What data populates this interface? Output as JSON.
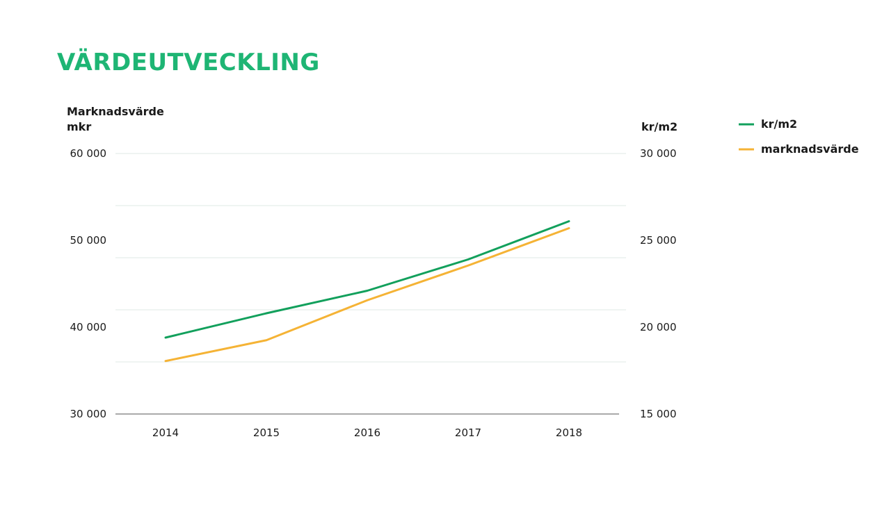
{
  "page_title": "VÄRDEUTVECKLING",
  "chart_data": {
    "type": "line",
    "categories": [
      "2014",
      "2015",
      "2016",
      "2017",
      "2018"
    ],
    "left_axis": {
      "label_line1": "Marknadsvärde",
      "label_line2": "mkr",
      "ylim": [
        30000,
        60000
      ],
      "ticks": [
        30000,
        40000,
        50000,
        60000
      ],
      "tick_labels": [
        "30 000",
        "40 000",
        "50 000",
        "60 000"
      ]
    },
    "right_axis": {
      "label": "kr/m2",
      "ylim": [
        15000,
        30000
      ],
      "ticks": [
        15000,
        20000,
        25000,
        30000
      ],
      "tick_labels": [
        "15 000",
        "20 000",
        "25 000",
        "30 000"
      ]
    },
    "series": [
      {
        "name": "kr/m2",
        "axis": "right",
        "color": "#12a05c",
        "values": [
          19400,
          20800,
          22100,
          23900,
          26100
        ]
      },
      {
        "name": "marknadsvärde",
        "axis": "left",
        "color": "#f5b335",
        "values": [
          36100,
          38500,
          43100,
          47100,
          51400
        ]
      }
    ],
    "grid": true,
    "gridline_count": 5,
    "legend_position": "top-right"
  }
}
